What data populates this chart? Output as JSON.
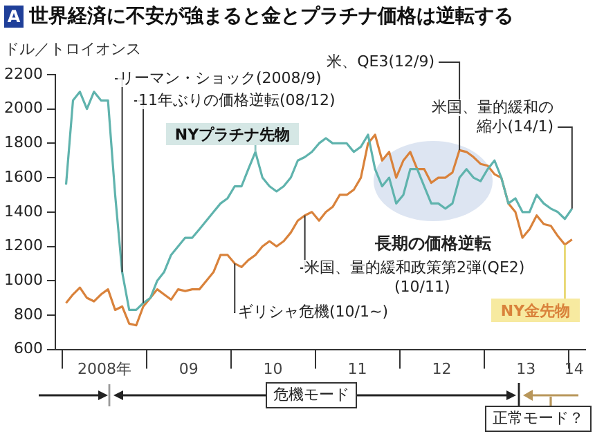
{
  "chart_data": {
    "type": "line",
    "title": "A 世界経済に不安が強まると金とプラチナ価格は逆転する",
    "ylabel": "ドル／トロイオンス",
    "x": [
      "2008-01",
      "2008-02",
      "2008-03",
      "2008-04",
      "2008-05",
      "2008-06",
      "2008-07",
      "2008-08",
      "2008-09",
      "2008-10",
      "2008-11",
      "2008-12",
      "2009-01",
      "2009-02",
      "2009-03",
      "2009-04",
      "2009-05",
      "2009-06",
      "2009-07",
      "2009-08",
      "2009-09",
      "2009-10",
      "2009-11",
      "2009-12",
      "2010-01",
      "2010-02",
      "2010-03",
      "2010-04",
      "2010-05",
      "2010-06",
      "2010-07",
      "2010-08",
      "2010-09",
      "2010-10",
      "2010-11",
      "2010-12",
      "2011-01",
      "2011-02",
      "2011-03",
      "2011-04",
      "2011-05",
      "2011-06",
      "2011-07",
      "2011-08",
      "2011-09",
      "2011-10",
      "2011-11",
      "2011-12",
      "2012-01",
      "2012-02",
      "2012-03",
      "2012-04",
      "2012-05",
      "2012-06",
      "2012-07",
      "2012-08",
      "2012-09",
      "2012-10",
      "2012-11",
      "2012-12",
      "2013-01",
      "2013-02",
      "2013-03",
      "2013-04",
      "2013-05",
      "2013-06",
      "2013-07",
      "2013-08",
      "2013-09",
      "2013-10",
      "2013-11",
      "2013-12",
      "2014-01"
    ],
    "series": [
      {
        "name": "NYプラチナ先物",
        "color": "#5fb3ad",
        "values": [
          1560,
          2050,
          2100,
          2000,
          2100,
          2050,
          2050,
          1500,
          1050,
          830,
          830,
          870,
          900,
          1000,
          1050,
          1150,
          1200,
          1250,
          1250,
          1300,
          1350,
          1400,
          1450,
          1480,
          1550,
          1550,
          1650,
          1750,
          1600,
          1550,
          1520,
          1550,
          1600,
          1700,
          1720,
          1750,
          1800,
          1830,
          1800,
          1800,
          1800,
          1750,
          1780,
          1850,
          1650,
          1550,
          1600,
          1450,
          1500,
          1650,
          1650,
          1550,
          1450,
          1450,
          1420,
          1450,
          1600,
          1650,
          1600,
          1580,
          1650,
          1700,
          1600,
          1450,
          1480,
          1400,
          1400,
          1500,
          1450,
          1420,
          1400,
          1360,
          1420
        ]
      },
      {
        "name": "NY金先物",
        "color": "#d9823b",
        "values": [
          870,
          920,
          960,
          900,
          880,
          920,
          950,
          830,
          850,
          750,
          740,
          850,
          900,
          950,
          920,
          890,
          950,
          940,
          950,
          950,
          1000,
          1050,
          1150,
          1150,
          1100,
          1080,
          1120,
          1150,
          1200,
          1230,
          1200,
          1230,
          1280,
          1350,
          1380,
          1400,
          1350,
          1400,
          1430,
          1500,
          1500,
          1530,
          1600,
          1800,
          1850,
          1700,
          1750,
          1600,
          1700,
          1750,
          1650,
          1650,
          1570,
          1600,
          1600,
          1630,
          1760,
          1750,
          1720,
          1680,
          1670,
          1620,
          1600,
          1450,
          1400,
          1250,
          1300,
          1380,
          1330,
          1320,
          1260,
          1210,
          1240
        ]
      }
    ],
    "xlim": [
      "2007-12-01",
      "2014-03-15"
    ],
    "xticks": [
      {
        "value": "2008-01-01",
        "label": null
      },
      {
        "value": "2008-07-01",
        "label": "2008年"
      },
      {
        "value": "2009-01-01",
        "label": null
      },
      {
        "value": "2009-07-01",
        "label": "09"
      },
      {
        "value": "2010-01-01",
        "label": null
      },
      {
        "value": "2010-07-01",
        "label": "10"
      },
      {
        "value": "2011-01-01",
        "label": null
      },
      {
        "value": "2011-07-01",
        "label": "11"
      },
      {
        "value": "2012-01-01",
        "label": null
      },
      {
        "value": "2012-07-01",
        "label": "12"
      },
      {
        "value": "2013-01-01",
        "label": null
      },
      {
        "value": "2013-07-01",
        "label": "13"
      },
      {
        "value": "2014-01-01",
        "label": null
      },
      {
        "value": "2014-01-25",
        "label": "14"
      }
    ],
    "ylim": [
      600,
      2200
    ],
    "yticks": [
      600,
      800,
      1000,
      1200,
      1400,
      1600,
      1800,
      2000,
      2200
    ],
    "grid": false,
    "legend": false,
    "marker": "none",
    "line_style": "solid",
    "annotations": [
      {
        "text": "リーマン・ショック(2008/9)",
        "x": "2008-09",
        "y": 1050
      },
      {
        "text": "11年ぶりの価格逆転(08/12)",
        "x": "2008-12",
        "y": 870
      },
      {
        "text": "ギリシャ危機(10/1~)",
        "x": "2010-01",
        "y": 1100
      },
      {
        "text": "米国、量的緩和政策第2弾(QE2)(10/11)",
        "x": "2010-11",
        "y": 1380
      },
      {
        "text": "米、QE3(12/9)",
        "x": "2012-09",
        "y": 1760
      },
      {
        "text": "米国、量的緩和の縮小(14/1)",
        "x": "2014-01",
        "y": 1420
      },
      "長期の価格逆転",
      "危機モード",
      "正常モード？"
    ]
  }
}
